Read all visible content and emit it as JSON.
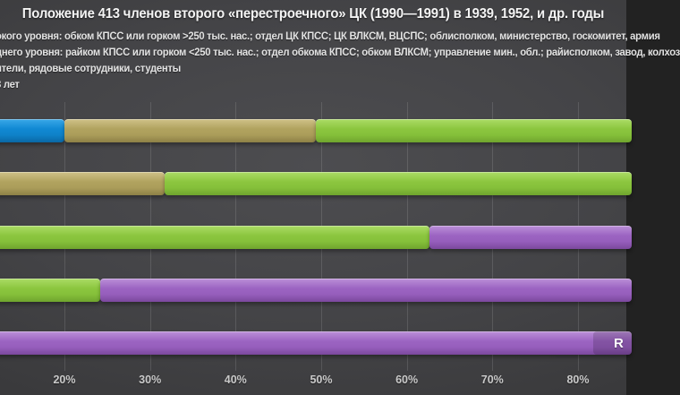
{
  "title": "Положение 413 членов второго «перестроечного» ЦК (1990—1991) в 1939, 1952, и др. годы",
  "legend": {
    "lines": [
      "окого уровня: обком КПСС или горком >250 тыс. нас.; отдел ЦК КПСС; ЦК ВЛКСМ, ВЦСПС; облисполком, министерство, госкомитет, армия",
      "днего уровня: райком КПСС или горком <250 тыс. нас.; отдел обкома КПСС; обком ВЛКСМ; управление мин., обл.; райисполком, завод, колхоз",
      "ители, рядовые сотрудники, студенты",
      "8 лет"
    ]
  },
  "watermark": "R",
  "colors": {
    "blue": "#1089d3",
    "tan": "#b1a35f",
    "green": "#8cc63f",
    "purple": "#9c64c2",
    "background": "#424245",
    "text": "#f4f4f4"
  },
  "chart_data": {
    "type": "bar",
    "subtype": "stacked_horizontal_100pct_cropped",
    "title": "Положение 413 членов второго «перестроечного» ЦК (1990—1991) в 1939, 1952, и др. годы",
    "xlabel": "",
    "ylabel": "",
    "unit": "%",
    "grid": true,
    "x_axis": {
      "visible_min": 12.47,
      "visible_max": 85.65,
      "ticks": [
        {
          "pct": 20,
          "label": "20%"
        },
        {
          "pct": 30,
          "label": "30%"
        },
        {
          "pct": 40,
          "label": "40%"
        },
        {
          "pct": 50,
          "label": "50%"
        },
        {
          "pct": 60,
          "label": "60%"
        },
        {
          "pct": 70,
          "label": "70%"
        },
        {
          "pct": 80,
          "label": "80%"
        }
      ]
    },
    "rows": [
      {
        "segments": [
          {
            "color": "blue",
            "start_pct": 12.47,
            "end_pct": 20.0
          },
          {
            "color": "tan",
            "start_pct": 20.0,
            "end_pct": 49.4
          },
          {
            "color": "green",
            "start_pct": 49.4,
            "end_pct": 85.65
          }
        ]
      },
      {
        "segments": [
          {
            "color": "tan",
            "start_pct": 12.47,
            "end_pct": 31.7
          },
          {
            "color": "green",
            "start_pct": 31.7,
            "end_pct": 85.65
          }
        ]
      },
      {
        "segments": [
          {
            "color": "green",
            "start_pct": 12.47,
            "end_pct": 62.65
          },
          {
            "color": "purple",
            "start_pct": 62.65,
            "end_pct": 85.65
          }
        ]
      },
      {
        "segments": [
          {
            "color": "green",
            "start_pct": 12.47,
            "end_pct": 24.2
          },
          {
            "color": "purple",
            "start_pct": 24.2,
            "end_pct": 85.65
          }
        ]
      },
      {
        "segments": [
          {
            "color": "purple",
            "start_pct": 12.47,
            "end_pct": 85.65
          }
        ]
      }
    ]
  }
}
